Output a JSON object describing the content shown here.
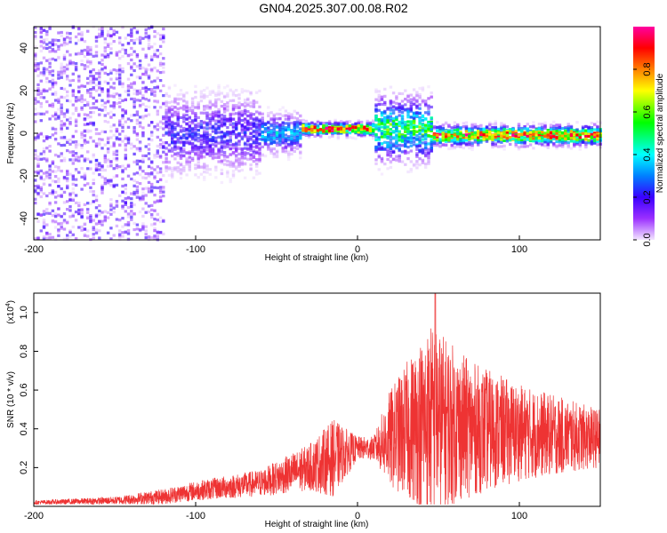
{
  "title": "GN04.2025.307.00.08.R02",
  "chart_data": [
    {
      "type": "heatmap",
      "name": "spectrogram",
      "xlabel": "Height of straight line (km)",
      "ylabel": "Frequency (Hz)",
      "xlim": [
        -200,
        150
      ],
      "ylim": [
        -50,
        50
      ],
      "x_ticks": [
        -200,
        -100,
        0,
        100
      ],
      "y_ticks": [
        -40,
        -20,
        0,
        20,
        40
      ],
      "colorbar": {
        "label": "Normalized spectral amplitude",
        "range": [
          0,
          1
        ],
        "ticks": [
          0.0,
          0.2,
          0.4,
          0.6,
          0.8
        ],
        "tick_labels": [
          "0.0",
          "0.2",
          "0.4",
          "0.6",
          "0.8"
        ],
        "colors": [
          "#f3e6ff",
          "#9b30ff",
          "#3a00ff",
          "#0080ff",
          "#00ffff",
          "#00ff00",
          "#ffff00",
          "#ff8000",
          "#ff0000",
          "#ff00a0"
        ]
      },
      "regions": [
        {
          "x": [
            -200,
            -120
          ],
          "freq_spread": 50,
          "amplitude": 0.15,
          "note": "broadband noise"
        },
        {
          "x": [
            -120,
            -60
          ],
          "freq_spread": 12,
          "amplitude": 0.25
        },
        {
          "x": [
            -60,
            -35
          ],
          "freq_spread": 6,
          "amplitude": 0.4
        },
        {
          "x": [
            -35,
            10
          ],
          "freq_spread": 2,
          "amplitude": 0.9,
          "center_hz": 2
        },
        {
          "x": [
            10,
            45
          ],
          "freq_spread": 10,
          "amplitude": 0.55,
          "center_hz": 2
        },
        {
          "x": [
            45,
            150
          ],
          "freq_spread": 3,
          "amplitude": 0.85,
          "center_hz": -1
        }
      ]
    },
    {
      "type": "line",
      "name": "snr",
      "xlabel": "Height of straight line (km)",
      "ylabel": "SNR (10 * v/v)",
      "y_exponent_label": "(x10",
      "y_exponent": "4",
      "y_exponent_close": ")",
      "xlim": [
        -200,
        150
      ],
      "ylim": [
        0,
        1.1
      ],
      "x_ticks": [
        -200,
        -100,
        0,
        100
      ],
      "y_ticks": [
        0.2,
        0.4,
        0.6,
        0.8,
        1.0
      ],
      "color": "#ee3333",
      "envelope": [
        {
          "x": -200,
          "base": 0.02,
          "spread": 0.01
        },
        {
          "x": -150,
          "base": 0.03,
          "spread": 0.02
        },
        {
          "x": -120,
          "base": 0.05,
          "spread": 0.04
        },
        {
          "x": -100,
          "base": 0.08,
          "spread": 0.05
        },
        {
          "x": -60,
          "base": 0.12,
          "spread": 0.07
        },
        {
          "x": -30,
          "base": 0.2,
          "spread": 0.12
        },
        {
          "x": -15,
          "base": 0.25,
          "spread": 0.2
        },
        {
          "x": 0,
          "base": 0.3,
          "spread": 0.06
        },
        {
          "x": 10,
          "base": 0.3,
          "spread": 0.06
        },
        {
          "x": 20,
          "base": 0.35,
          "spread": 0.25
        },
        {
          "x": 45,
          "base": 0.45,
          "spread": 0.5
        },
        {
          "x": 70,
          "base": 0.4,
          "spread": 0.35
        },
        {
          "x": 100,
          "base": 0.38,
          "spread": 0.25
        },
        {
          "x": 150,
          "base": 0.35,
          "spread": 0.15
        }
      ],
      "peak": {
        "x": 48,
        "y": 1.1
      }
    }
  ]
}
